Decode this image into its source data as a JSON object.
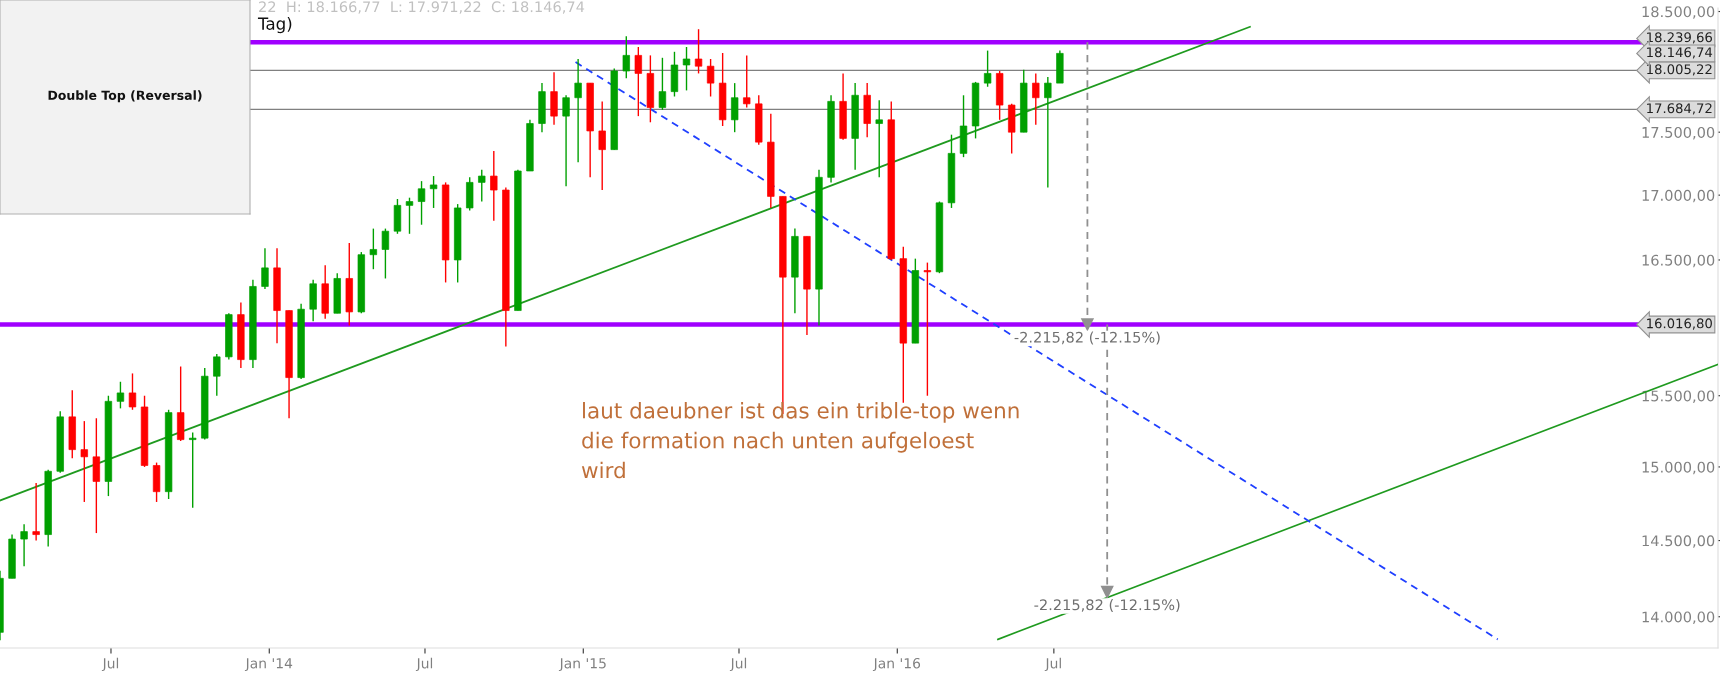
{
  "chart_data": {
    "type": "candlestick",
    "title": "Tag)",
    "subtitle": "22  H: 18.166,77  L: 17.971,22  C: 18.146,74",
    "colors": [
      "#00a000",
      "#00a000",
      "#00a000",
      "#ff0000",
      "#00a000",
      "#00a000",
      "#ff0000",
      "#ff0000",
      "#ff0000",
      "#00a000",
      "#00a000",
      "#ff0000",
      "#ff0000",
      "#ff0000",
      "#00a000",
      "#ff0000",
      "#00a000",
      "#00a000",
      "#00a000",
      "#00a000",
      "#ff0000",
      "#00a000",
      "#00a000",
      "#ff0000",
      "#ff0000",
      "#00a000",
      "#00a000",
      "#ff0000",
      "#00a000",
      "#ff0000",
      "#00a000",
      "#00a000",
      "#00a000",
      "#00a000",
      "#00a000",
      "#00a000",
      "#00a000",
      "#ff0000",
      "#00a000",
      "#00a000",
      "#00a000",
      "#ff0000",
      "#ff0000",
      "#00a000",
      "#00a000",
      "#00a000",
      "#ff0000",
      "#00a000",
      "#00a000",
      "#ff0000",
      "#ff0000",
      "#00a000",
      "#00a000",
      "#ff0000",
      "#ff0000",
      "#00a000",
      "#00a000",
      "#00a000",
      "#ff0000",
      "#ff0000",
      "#ff0000",
      "#00a000",
      "#ff0000",
      "#ff0000",
      "#ff0000",
      "#ff0000",
      "#00a000",
      "#ff0000",
      "#00a000",
      "#00a000",
      "#ff0000",
      "#00a000",
      "#ff0000",
      "#00a000",
      "#ff0000",
      "#ff0000",
      "#00a000",
      "#ff0000",
      "#00a000",
      "#00a000",
      "#00a000",
      "#00a000",
      "#00a000",
      "#ff0000",
      "#ff0000",
      "#00a000",
      "#ff0000",
      "#00a000",
      "#00a000"
    ],
    "x": [
      "2013-02-22",
      "2013-03-08",
      "2013-03-22",
      "2013-04-05",
      "2013-04-19",
      "2013-05-03",
      "2013-05-17",
      "2013-05-31",
      "2013-06-14",
      "2013-06-28",
      "2013-07-12",
      "2013-07-26",
      "2013-08-09",
      "2013-08-23",
      "2013-09-06",
      "2013-09-20",
      "2013-10-04",
      "2013-10-18",
      "2013-11-01",
      "2013-11-15",
      "2013-11-29",
      "2013-12-13",
      "2013-12-27",
      "2014-01-10",
      "2014-01-24",
      "2014-02-07",
      "2014-02-21",
      "2014-03-07",
      "2014-03-21",
      "2014-04-04",
      "2014-04-18",
      "2014-05-02",
      "2014-05-16",
      "2014-05-30",
      "2014-06-13",
      "2014-06-27",
      "2014-07-11",
      "2014-07-25",
      "2014-08-08",
      "2014-08-22",
      "2014-09-05",
      "2014-09-19",
      "2014-10-03",
      "2014-10-17",
      "2014-10-31",
      "2014-11-14",
      "2014-11-28",
      "2014-12-12",
      "2014-12-26",
      "2015-01-09",
      "2015-01-23",
      "2015-02-06",
      "2015-02-20",
      "2015-03-06",
      "2015-03-20",
      "2015-04-03",
      "2015-04-17",
      "2015-05-01",
      "2015-05-15",
      "2015-05-29",
      "2015-06-12",
      "2015-06-26",
      "2015-07-10",
      "2015-07-24",
      "2015-08-07",
      "2015-08-21",
      "2015-09-04",
      "2015-09-18",
      "2015-10-02",
      "2015-10-16",
      "2015-10-30",
      "2015-11-13",
      "2015-11-27",
      "2015-12-11",
      "2015-12-25",
      "2016-01-08",
      "2016-01-22",
      "2016-02-05",
      "2016-02-19",
      "2016-03-04",
      "2016-03-18",
      "2016-04-01",
      "2016-04-15",
      "2016-04-29",
      "2016-05-13",
      "2016-05-27",
      "2016-06-10",
      "2016-06-24",
      "2016-07-08"
    ],
    "ohlc": [
      [
        13900,
        14300,
        13850,
        14250
      ],
      [
        14250,
        14540,
        14250,
        14510
      ],
      [
        14510,
        14610,
        14330,
        14560
      ],
      [
        14560,
        14890,
        14500,
        14540
      ],
      [
        14540,
        14980,
        14460,
        14970
      ],
      [
        14970,
        15390,
        14960,
        15350
      ],
      [
        15350,
        15540,
        15060,
        15120
      ],
      [
        15120,
        15320,
        14760,
        15070
      ],
      [
        15070,
        15340,
        14550,
        14900
      ],
      [
        14900,
        15500,
        14800,
        15460
      ],
      [
        15460,
        15600,
        15410,
        15520
      ],
      [
        15520,
        15660,
        15400,
        15420
      ],
      [
        15420,
        15500,
        15000,
        15010
      ],
      [
        15010,
        15030,
        14760,
        14830
      ],
      [
        14830,
        15400,
        14780,
        15380
      ],
      [
        15380,
        15710,
        15180,
        15190
      ],
      [
        15190,
        15240,
        14720,
        15200
      ],
      [
        15200,
        15700,
        15190,
        15640
      ],
      [
        15640,
        15800,
        15500,
        15780
      ],
      [
        15780,
        16100,
        15760,
        16090
      ],
      [
        16090,
        16180,
        15700,
        15760
      ],
      [
        15760,
        16350,
        15700,
        16300
      ],
      [
        16300,
        16590,
        16280,
        16440
      ],
      [
        16440,
        16590,
        15880,
        16120
      ],
      [
        16120,
        16120,
        15340,
        15630
      ],
      [
        15630,
        16170,
        15620,
        16130
      ],
      [
        16130,
        16350,
        16040,
        16320
      ],
      [
        16320,
        16460,
        16060,
        16100
      ],
      [
        16100,
        16400,
        16100,
        16360
      ],
      [
        16360,
        16630,
        16010,
        16110
      ],
      [
        16110,
        16560,
        16100,
        16540
      ],
      [
        16540,
        16740,
        16430,
        16580
      ],
      [
        16580,
        16740,
        16360,
        16720
      ],
      [
        16720,
        16970,
        16700,
        16920
      ],
      [
        16920,
        16980,
        16700,
        16950
      ],
      [
        16950,
        17110,
        16770,
        17050
      ],
      [
        17050,
        17150,
        16900,
        17080
      ],
      [
        17080,
        17100,
        16330,
        16500
      ],
      [
        16500,
        16930,
        16330,
        16900
      ],
      [
        16900,
        17140,
        16880,
        17100
      ],
      [
        17100,
        17200,
        16950,
        17150
      ],
      [
        17150,
        17350,
        16800,
        17040
      ],
      [
        17040,
        17060,
        15855,
        16120
      ],
      [
        16120,
        17200,
        16120,
        17190
      ],
      [
        17190,
        17600,
        17190,
        17570
      ],
      [
        17570,
        17900,
        17500,
        17830
      ],
      [
        17830,
        17990,
        17560,
        17630
      ],
      [
        17630,
        17800,
        17070,
        17780
      ],
      [
        17780,
        18100,
        17260,
        17900
      ],
      [
        17900,
        17900,
        17140,
        17510
      ],
      [
        17510,
        17750,
        17040,
        17360
      ],
      [
        17360,
        18020,
        17360,
        18000
      ],
      [
        18000,
        18290,
        17940,
        18130
      ],
      [
        18130,
        18200,
        17630,
        17980
      ],
      [
        17980,
        18130,
        17580,
        17700
      ],
      [
        17700,
        18110,
        17680,
        17830
      ],
      [
        17830,
        18160,
        17790,
        18050
      ],
      [
        18050,
        18200,
        17840,
        18100
      ],
      [
        18100,
        18350,
        17980,
        18040
      ],
      [
        18040,
        18100,
        17790,
        17900
      ],
      [
        17900,
        18150,
        17550,
        17600
      ],
      [
        17600,
        17900,
        17500,
        17780
      ],
      [
        17780,
        18130,
        17700,
        17730
      ],
      [
        17730,
        17800,
        17400,
        17420
      ],
      [
        17420,
        17650,
        16900,
        16990
      ],
      [
        16990,
        16990,
        15370,
        16370
      ],
      [
        16370,
        16740,
        16100,
        16680
      ],
      [
        16680,
        16680,
        15940,
        16280
      ],
      [
        16280,
        17200,
        16010,
        17140
      ],
      [
        17140,
        17800,
        17100,
        17750
      ],
      [
        17750,
        17980,
        17440,
        17450
      ],
      [
        17450,
        17900,
        17200,
        17800
      ],
      [
        17800,
        17900,
        17460,
        17570
      ],
      [
        17570,
        17760,
        17140,
        17600
      ],
      [
        17600,
        17750,
        16500,
        16510
      ],
      [
        16510,
        16600,
        15450,
        15880
      ],
      [
        15880,
        16510,
        15880,
        16420
      ],
      [
        16420,
        16480,
        15500,
        16410
      ],
      [
        16410,
        16950,
        16400,
        16940
      ],
      [
        16940,
        17480,
        16900,
        17330
      ],
      [
        17330,
        17800,
        17300,
        17550
      ],
      [
        17550,
        17910,
        17450,
        17900
      ],
      [
        17900,
        18170,
        17870,
        17980
      ],
      [
        17980,
        18000,
        17600,
        17720
      ],
      [
        17720,
        17730,
        17330,
        17500
      ],
      [
        17500,
        18010,
        17500,
        17900
      ],
      [
        17900,
        17980,
        17560,
        17780
      ],
      [
        17780,
        17950,
        17060,
        17900
      ],
      [
        17900,
        18170,
        17900,
        18146.74
      ]
    ],
    "series": [
      {
        "type": "line",
        "color": "#1f9a1f",
        "line_style": "solid",
        "x": [
          "2013-02-22",
          "2017-02-14"
        ],
        "values": [
          14770,
          18370
        ]
      },
      {
        "type": "line",
        "color": "#1f9a1f",
        "line_style": "solid",
        "x": [
          "2016-04-27",
          "2018-08-12"
        ],
        "values": [
          13855,
          15726
        ]
      },
      {
        "type": "line",
        "color": "#2040ff",
        "line_style": "dashed",
        "x": [
          "2014-12-23",
          "2017-11-29"
        ],
        "values": [
          18074,
          13855
        ]
      },
      {
        "type": "line",
        "color": "#909090",
        "line_style": "dashed",
        "marker": "triangle",
        "x": [
          "2016-08-09",
          "2016-08-09"
        ],
        "values": [
          18239.66,
          16016.8
        ]
      },
      {
        "type": "line",
        "color": "#909090",
        "line_style": "dashed",
        "marker": "triangle",
        "x": [
          "2016-09-01",
          "2016-09-01"
        ],
        "values": [
          16016.8,
          14160
        ]
      }
    ],
    "ref_lines": [
      {
        "axis": "y",
        "value": 18239.66,
        "label": "18.239,66",
        "color": "#a000ff"
      },
      {
        "axis": "y",
        "value": 18005.22,
        "label": "18.005,22",
        "color": "#808080"
      },
      {
        "axis": "y",
        "value": 17684.72,
        "label": "17.684,72",
        "color": "#808080"
      },
      {
        "axis": "y",
        "value": 16016.8,
        "label": "16.016,80",
        "color": "#a000ff"
      }
    ],
    "annotations": [
      "18.146,74",
      {
        "text": "-2.215,82 (-12.15%)",
        "x": "2016-08-09",
        "y": 16016.8
      },
      {
        "text": "-2.215,82 (-12.15%)",
        "x": "2016-09-01",
        "y": 14160
      },
      "laut daeubner ist das ein trible-top wenn\ndie formation nach unten aufgeloest\nwird",
      "Double Top (Reversal)"
    ],
    "log": true,
    "xlim": [
      "2013-02-22",
      "2018-08-12"
    ],
    "xticks": [
      {
        "value": "2013-07-01",
        "label": "Jul"
      },
      {
        "value": "2014-01-01",
        "label": "Jan '14"
      },
      {
        "value": "2014-07-01",
        "label": "Jul"
      },
      {
        "value": "2015-01-01",
        "label": "Jan '15"
      },
      {
        "value": "2015-07-01",
        "label": "Jul"
      },
      {
        "value": "2016-01-01",
        "label": "Jan '16"
      },
      {
        "value": "2016-07-01",
        "label": "Jul"
      }
    ],
    "ylim": [
      13800,
      18530
    ],
    "yticks": [
      {
        "value": 14000,
        "label": "14.000,00"
      },
      {
        "value": 14500,
        "label": "14.500,00"
      },
      {
        "value": 15000,
        "label": "15.000,00"
      },
      {
        "value": 15500,
        "label": "15.500,00"
      },
      {
        "value": 16500,
        "label": "16.500,00"
      },
      {
        "value": 17000,
        "label": "17.000,00"
      },
      {
        "value": 17500,
        "label": "17.500,00"
      },
      {
        "value": 18500,
        "label": "18.500,00"
      }
    ],
    "grid": false
  }
}
